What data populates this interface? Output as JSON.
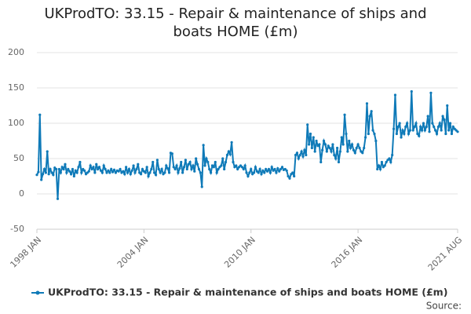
{
  "chart_data": {
    "type": "line",
    "title": "UKProdTO: 33.15 - Repair & maintenance of ships and boats HOME (£m)",
    "categories": [
      "1998 JAN",
      null,
      null,
      null,
      null,
      null,
      null,
      null,
      null,
      null,
      null,
      null,
      null,
      null,
      null,
      null,
      null,
      null,
      null,
      null,
      null,
      null,
      null,
      null,
      null,
      null,
      null,
      null,
      null,
      null,
      null,
      null,
      null,
      null,
      null,
      null,
      null,
      null,
      null,
      null,
      null,
      null,
      null,
      null,
      null,
      null,
      null,
      null,
      null,
      null,
      null,
      null,
      null,
      null,
      null,
      null,
      null,
      null,
      null,
      null,
      null,
      null,
      null,
      null,
      null,
      null,
      null,
      null,
      null,
      null,
      null,
      null,
      "2004 JAN",
      null,
      null,
      null,
      null,
      null,
      null,
      null,
      null,
      null,
      null,
      null,
      null,
      null,
      null,
      null,
      null,
      null,
      null,
      null,
      null,
      null,
      null,
      null,
      null,
      null,
      null,
      null,
      null,
      null,
      null,
      null,
      null,
      null,
      null,
      null,
      null,
      null,
      null,
      null,
      null,
      null,
      null,
      null,
      null,
      null,
      null,
      null,
      null,
      null,
      null,
      null,
      null,
      null,
      null,
      null,
      null,
      null,
      null,
      null,
      null,
      null,
      null,
      null,
      null,
      null,
      null,
      null,
      null,
      null,
      null,
      null,
      "2010 JAN",
      null,
      null,
      null,
      null,
      null,
      null,
      null,
      null,
      null,
      null,
      null,
      null,
      null,
      null,
      null,
      null,
      null,
      null,
      null,
      null,
      null,
      null,
      null,
      null,
      null,
      null,
      null,
      null,
      null,
      null,
      null,
      null,
      null,
      null,
      null,
      null,
      null,
      null,
      null,
      null,
      null,
      null,
      null,
      null,
      null,
      null,
      null,
      null,
      null,
      null,
      null,
      null,
      null,
      null,
      null,
      null,
      null,
      null,
      null,
      null,
      null,
      null,
      null,
      null,
      null,
      null,
      null,
      null,
      null,
      null,
      null,
      "2016 JAN",
      null,
      null,
      null,
      null,
      null,
      null,
      null,
      null,
      null,
      null,
      null,
      null,
      null,
      null,
      null,
      null,
      null,
      null,
      null,
      null,
      null,
      null,
      null,
      null,
      null,
      null,
      null,
      null,
      null,
      null,
      null,
      null,
      null,
      null,
      null,
      null,
      null,
      null,
      null,
      null,
      null,
      null,
      null,
      null,
      null,
      null,
      null,
      null,
      null,
      null,
      null,
      null,
      null,
      null,
      null,
      null,
      null,
      null,
      null,
      null,
      null,
      null,
      null,
      null,
      null,
      null,
      "2021 AUG"
    ],
    "series": [
      {
        "name": "UKProdTO: 33.15 - Repair & maintenance of ships and boats HOME (£m)",
        "color": "#0f7ab8",
        "values": [
          27,
          31,
          112,
          20,
          28,
          35,
          30,
          60,
          28,
          35,
          30,
          27,
          37,
          35,
          -7,
          35,
          30,
          38,
          35,
          42,
          30,
          35,
          32,
          28,
          35,
          25,
          33,
          30,
          38,
          45,
          30,
          35,
          33,
          28,
          30,
          32,
          40,
          35,
          38,
          30,
          42,
          35,
          38,
          33,
          30,
          40,
          35,
          30,
          33,
          30,
          35,
          31,
          34,
          30,
          33,
          32,
          35,
          30,
          32,
          28,
          38,
          30,
          35,
          28,
          33,
          40,
          30,
          35,
          42,
          30,
          28,
          35,
          32,
          30,
          38,
          25,
          30,
          35,
          45,
          30,
          27,
          48,
          35,
          30,
          35,
          28,
          30,
          40,
          36,
          30,
          58,
          57,
          38,
          35,
          40,
          30,
          36,
          45,
          30,
          38,
          48,
          35,
          42,
          45,
          35,
          40,
          32,
          50,
          42,
          35,
          30,
          10,
          69,
          40,
          50,
          45,
          35,
          30,
          40,
          38,
          45,
          30,
          35,
          38,
          40,
          50,
          35,
          45,
          55,
          60,
          56,
          73,
          45,
          38,
          40,
          35,
          38,
          40,
          38,
          35,
          40,
          30,
          25,
          30,
          35,
          28,
          30,
          38,
          32,
          30,
          35,
          28,
          33,
          30,
          35,
          32,
          35,
          30,
          38,
          33,
          35,
          30,
          36,
          32,
          35,
          38,
          34,
          35,
          33,
          25,
          22,
          28,
          30,
          25,
          55,
          58,
          50,
          55,
          60,
          53,
          62,
          55,
          98,
          70,
          85,
          65,
          80,
          60,
          75,
          68,
          70,
          45,
          62,
          75,
          70,
          60,
          68,
          65,
          60,
          70,
          55,
          50,
          65,
          45,
          60,
          80,
          70,
          112,
          85,
          60,
          75,
          65,
          70,
          62,
          58,
          65,
          70,
          65,
          60,
          58,
          65,
          80,
          128,
          85,
          110,
          117,
          90,
          85,
          75,
          35,
          40,
          35,
          45,
          38,
          40,
          45,
          48,
          50,
          45,
          55,
          92,
          140,
          85,
          95,
          100,
          80,
          90,
          85,
          95,
          100,
          85,
          90,
          145,
          90,
          95,
          100,
          85,
          82,
          95,
          90,
          100,
          90,
          95,
          110,
          88,
          143,
          100,
          95,
          90,
          85,
          95,
          100,
          90,
          110,
          105,
          85,
          125,
          90,
          100,
          85,
          95,
          92,
          90,
          88
        ]
      }
    ],
    "ylim": [
      -50,
      200
    ],
    "yticks": [
      -50,
      0,
      50,
      100,
      150,
      200
    ],
    "grid": true,
    "source": "Source:"
  }
}
